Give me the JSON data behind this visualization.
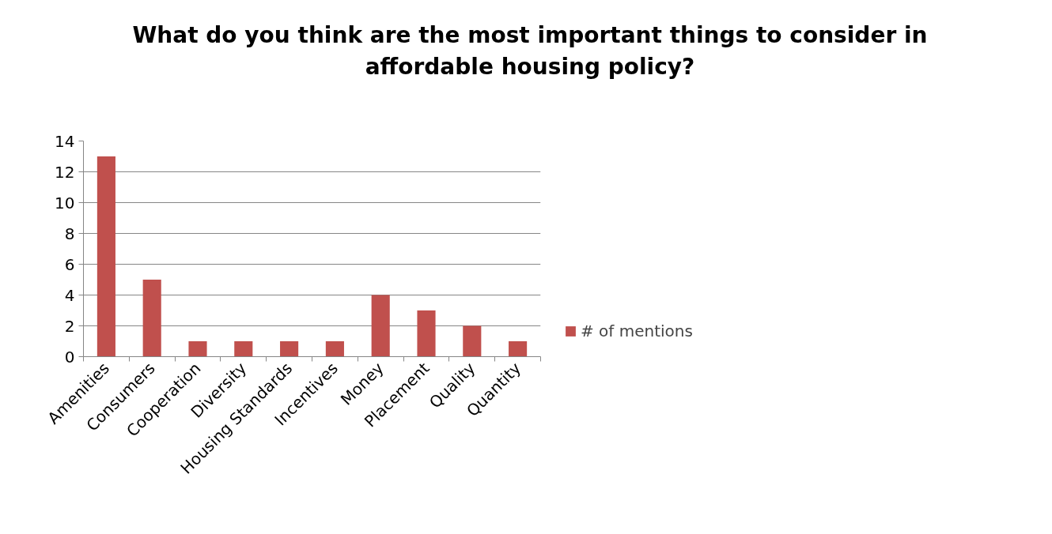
{
  "chart_data": {
    "type": "bar",
    "title": "What do you think are the most important things to consider in\naffordable housing policy?",
    "categories": [
      "Amenities",
      "Consumers",
      "Cooperation",
      "Diversity",
      "Housing Standards",
      "Incentives",
      "Money",
      "Placement",
      "Quality",
      "Quantity"
    ],
    "series": [
      {
        "name": "# of mentions",
        "color": "#c0504d",
        "values": [
          13,
          5,
          1,
          1,
          1,
          1,
          4,
          3,
          2,
          1
        ]
      }
    ],
    "ylim": [
      0,
      14
    ],
    "yticks": [
      0,
      2,
      4,
      6,
      8,
      10,
      12,
      14
    ],
    "grid": "y",
    "legend": "right"
  }
}
